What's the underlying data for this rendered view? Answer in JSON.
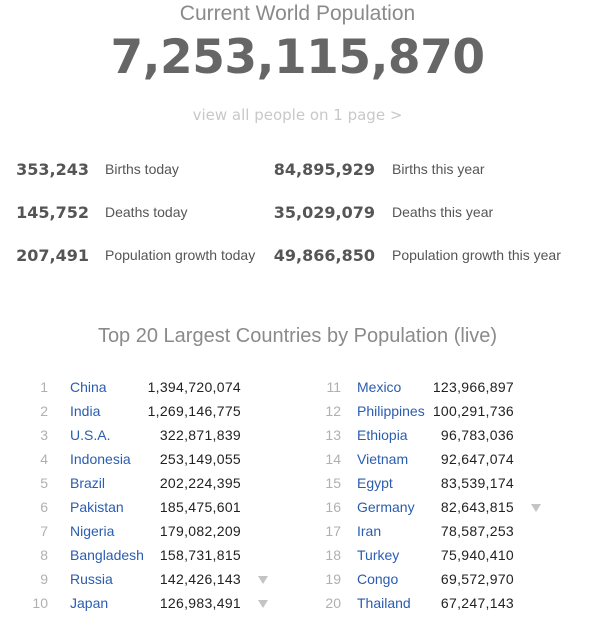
{
  "header": {
    "title": "Current World Population",
    "population": "7,253,115,870",
    "view_all_link": "view all people on 1 page >"
  },
  "stats": {
    "left": [
      {
        "value": "353,243",
        "label": "Births today"
      },
      {
        "value": "145,752",
        "label": "Deaths today"
      },
      {
        "value": "207,491",
        "label": "Population growth today"
      }
    ],
    "right": [
      {
        "value": "84,895,929",
        "label": "Births this year"
      },
      {
        "value": "35,029,079",
        "label": "Deaths this year"
      },
      {
        "value": "49,866,850",
        "label": "Population growth this year"
      }
    ]
  },
  "countries_section": {
    "title": "Top 20 Largest Countries by Population (live)",
    "left": [
      {
        "rank": "1",
        "name": "China",
        "population": "1,394,720,074",
        "trend": null
      },
      {
        "rank": "2",
        "name": "India",
        "population": "1,269,146,775",
        "trend": null
      },
      {
        "rank": "3",
        "name": "U.S.A.",
        "population": "322,871,839",
        "trend": null
      },
      {
        "rank": "4",
        "name": "Indonesia",
        "population": "253,149,055",
        "trend": null
      },
      {
        "rank": "5",
        "name": "Brazil",
        "population": "202,224,395",
        "trend": null
      },
      {
        "rank": "6",
        "name": "Pakistan",
        "population": "185,475,601",
        "trend": null
      },
      {
        "rank": "7",
        "name": "Nigeria",
        "population": "179,082,209",
        "trend": null
      },
      {
        "rank": "8",
        "name": "Bangladesh",
        "population": "158,731,815",
        "trend": null
      },
      {
        "rank": "9",
        "name": "Russia",
        "population": "142,426,143",
        "trend": "down"
      },
      {
        "rank": "10",
        "name": "Japan",
        "population": "126,983,491",
        "trend": "down"
      }
    ],
    "right": [
      {
        "rank": "11",
        "name": "Mexico",
        "population": "123,966,897",
        "trend": null
      },
      {
        "rank": "12",
        "name": "Philippines",
        "population": "100,291,736",
        "trend": null
      },
      {
        "rank": "13",
        "name": "Ethiopia",
        "population": "96,783,036",
        "trend": null
      },
      {
        "rank": "14",
        "name": "Vietnam",
        "population": "92,647,074",
        "trend": null
      },
      {
        "rank": "15",
        "name": "Egypt",
        "population": "83,539,174",
        "trend": null
      },
      {
        "rank": "16",
        "name": "Germany",
        "population": "82,643,815",
        "trend": "down"
      },
      {
        "rank": "17",
        "name": "Iran",
        "population": "78,587,253",
        "trend": null
      },
      {
        "rank": "18",
        "name": "Turkey",
        "population": "75,940,410",
        "trend": null
      },
      {
        "rank": "19",
        "name": "Congo",
        "population": "69,572,970",
        "trend": null
      },
      {
        "rank": "20",
        "name": "Thailand",
        "population": "67,247,143",
        "trend": null
      }
    ]
  },
  "colors": {
    "country_link": "#2a5db0",
    "muted_title": "#8a8a8a",
    "trend_arrow": "#c4c4c4"
  },
  "icons": {
    "trend_down": "triangle-down-icon"
  }
}
